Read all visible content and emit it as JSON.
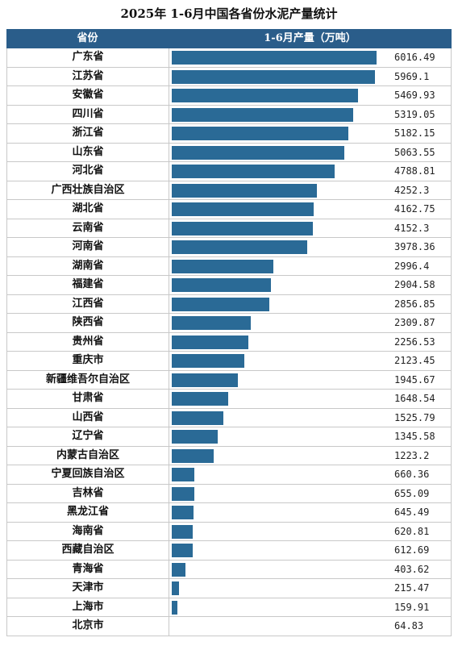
{
  "title": "2025年 1-6月中国各省份水泥产量统计",
  "header": {
    "col1": "省份",
    "col2": "1-6月产量（万吨）"
  },
  "colors": {
    "bar": "#2a6a96",
    "header_bg": "#2a5d8a"
  },
  "chart_data": {
    "type": "bar",
    "orientation": "horizontal",
    "title": "2025年 1-6月中国各省份水泥产量统计",
    "ylabel": "1-6月产量（万吨）",
    "categories": [
      "广东省",
      "江苏省",
      "安徽省",
      "四川省",
      "浙江省",
      "山东省",
      "河北省",
      "广西壮族自治区",
      "湖北省",
      "云南省",
      "河南省",
      "湖南省",
      "福建省",
      "江西省",
      "陕西省",
      "贵州省",
      "重庆市",
      "新疆维吾尔自治区",
      "甘肃省",
      "山西省",
      "辽宁省",
      "内蒙古自治区",
      "宁夏回族自治区",
      "吉林省",
      "黑龙江省",
      "海南省",
      "西藏自治区",
      "青海省",
      "天津市",
      "上海市",
      "北京市"
    ],
    "values": [
      6016.49,
      5969.1,
      5469.93,
      5319.05,
      5182.15,
      5063.55,
      4788.81,
      4252.3,
      4162.75,
      4152.3,
      3978.36,
      2996.4,
      2904.58,
      2856.85,
      2309.87,
      2256.53,
      2123.45,
      1945.67,
      1648.54,
      1525.79,
      1345.58,
      1223.2,
      660.36,
      655.09,
      645.49,
      620.81,
      612.69,
      403.62,
      215.47,
      159.91,
      64.83
    ],
    "value_labels": [
      "6016.49",
      "5969.1",
      "5469.93",
      "5319.05",
      "5182.15",
      "5063.55",
      "4788.81",
      "4252.3",
      "4162.75",
      "4152.3",
      "3978.36",
      "2996.4",
      "2904.58",
      "2856.85",
      "2309.87",
      "2256.53",
      "2123.45",
      "1945.67",
      "1648.54",
      "1525.79",
      "1345.58",
      "1223.2",
      "660.36",
      "655.09",
      "645.49",
      "620.81",
      "612.69",
      "403.62",
      "215.47",
      "159.91",
      "64.83"
    ]
  }
}
